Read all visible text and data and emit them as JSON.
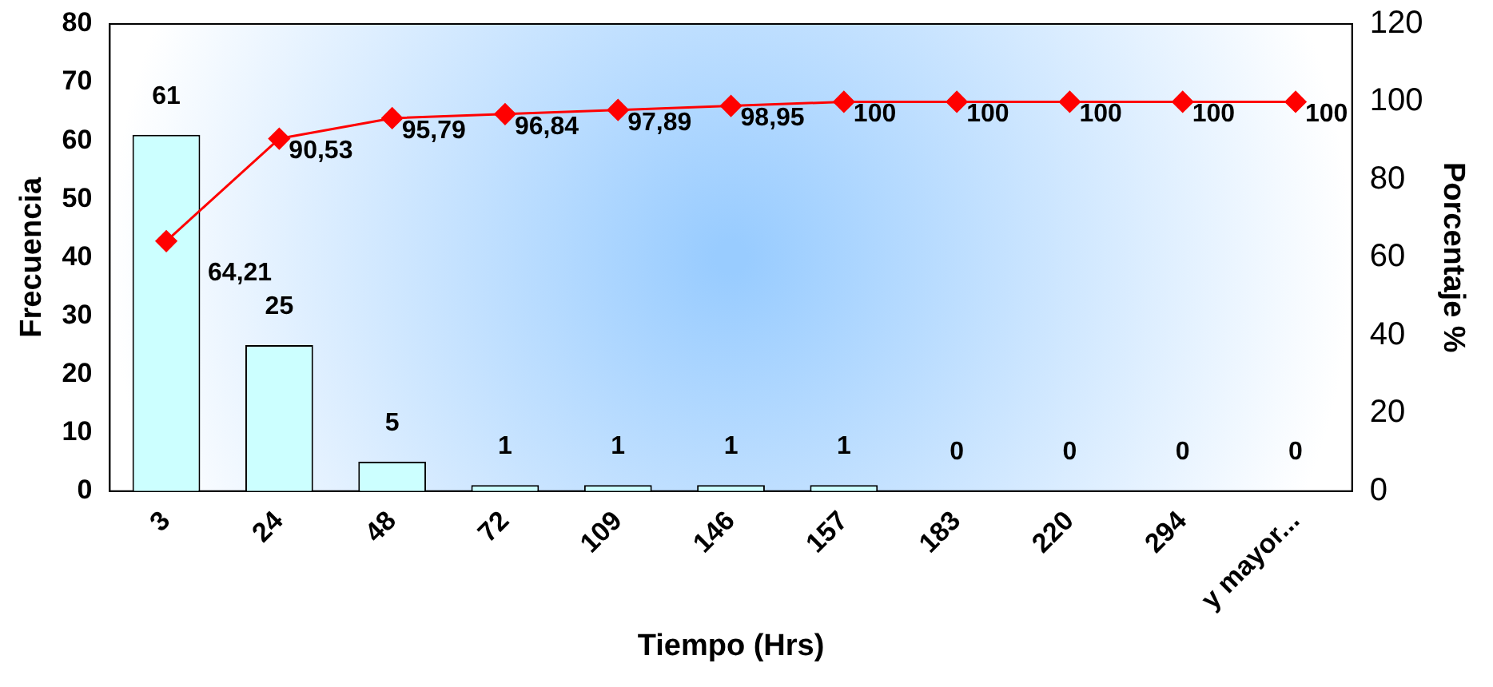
{
  "chart_data": {
    "type": "bar",
    "xlabel": "Tiempo (Hrs)",
    "ylabel": "Frecuencia",
    "y2label": "Porcentaje %",
    "categories": [
      "3",
      "24",
      "48",
      "72",
      "109",
      "146",
      "157",
      "183",
      "220",
      "294",
      "y mayor..."
    ],
    "series": [
      {
        "color": "#ccffff",
        "values": [
          61,
          25,
          5,
          1,
          1,
          1,
          1,
          0,
          0,
          0,
          0
        ]
      },
      {
        "type": "line",
        "axis": "y2",
        "color": "#ff0000",
        "marker": "diamond",
        "values": [
          64.21,
          90.53,
          95.79,
          96.84,
          97.89,
          98.95,
          100,
          100,
          100,
          100,
          100
        ],
        "value_labels": [
          "64,21",
          "90,53",
          "95,79",
          "96,84",
          "97,89",
          "98,95",
          "100",
          "100",
          "100",
          "100",
          "100"
        ]
      }
    ],
    "ylim": [
      0,
      80
    ],
    "yticks": [
      0,
      10,
      20,
      30,
      40,
      50,
      60,
      70,
      80
    ],
    "y2lim": [
      0,
      120
    ],
    "y2ticks": [
      0,
      20,
      40,
      60,
      80,
      100,
      120
    ],
    "data_labels": true,
    "grid": false,
    "legend": false
  }
}
